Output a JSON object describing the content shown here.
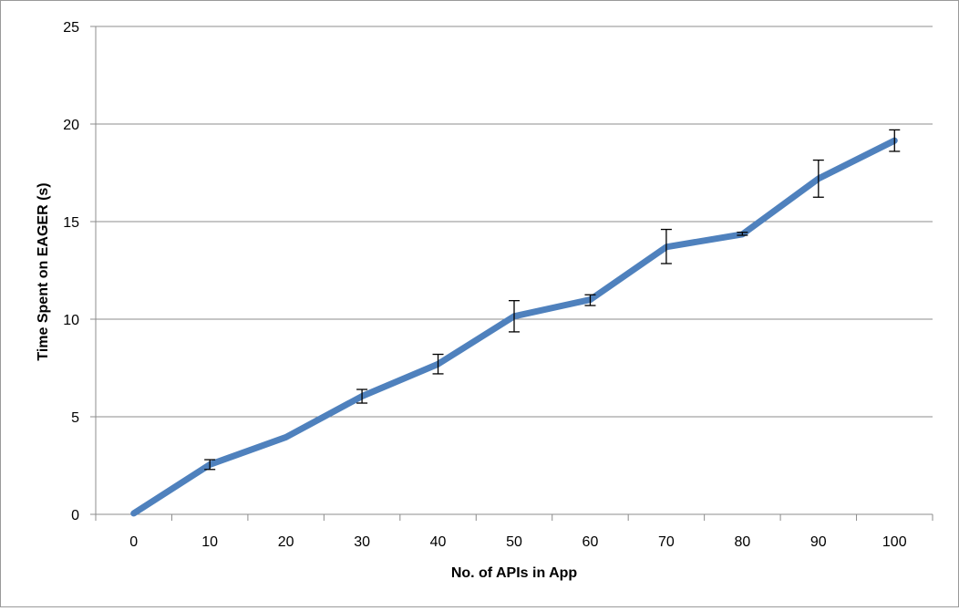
{
  "chart_data": {
    "type": "line",
    "title": "",
    "xlabel": "No. of APIs in App",
    "ylabel": "Time Spent on EAGER (s)",
    "x": [
      0,
      10,
      20,
      30,
      40,
      50,
      60,
      70,
      80,
      90,
      100
    ],
    "x_tick_labels": [
      "0",
      "10",
      "20",
      "30",
      "40",
      "50",
      "60",
      "70",
      "80",
      "90",
      "100"
    ],
    "y_ticks": [
      0,
      5,
      10,
      15,
      20,
      25
    ],
    "y_tick_labels": [
      "0",
      "5",
      "10",
      "15",
      "20",
      "25"
    ],
    "ylim": [
      0,
      25
    ],
    "grid": true,
    "legend": "none",
    "series": [
      {
        "values": [
          0.05,
          2.55,
          3.95,
          6.05,
          7.7,
          10.15,
          11.0,
          13.7,
          14.35,
          17.2,
          19.15
        ],
        "error_low": [
          0.05,
          2.3,
          3.95,
          5.7,
          7.2,
          9.35,
          10.7,
          12.85,
          14.3,
          16.25,
          18.6
        ],
        "error_high": [
          0.05,
          2.8,
          3.95,
          6.4,
          8.2,
          10.95,
          11.25,
          14.6,
          14.45,
          18.15,
          19.7
        ],
        "color": "#4f81bd"
      }
    ],
    "grid_color": "#8c8c8c",
    "axis_color": "#8c8c8c",
    "error_bar_color": "#000000"
  }
}
